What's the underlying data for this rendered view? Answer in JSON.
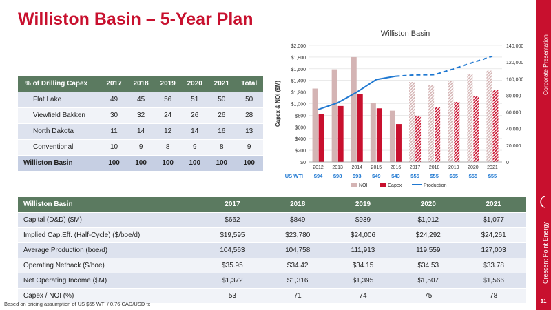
{
  "title": "Williston Basin – 5-Year Plan",
  "sidebar": {
    "top_text": "Corporate Presentation",
    "brand_text": "Crescent Point Energy",
    "page_number": "31"
  },
  "footnote": "Based on pricing assumption of US $55 WTI / 0.76 CAD/USD fx",
  "capex_table": {
    "headers": [
      "% of Drilling Capex",
      "2017",
      "2018",
      "2019",
      "2020",
      "2021",
      "Total"
    ],
    "rows": [
      [
        "Flat Lake",
        "49",
        "45",
        "56",
        "51",
        "50",
        "50"
      ],
      [
        "Viewfield Bakken",
        "30",
        "32",
        "24",
        "26",
        "26",
        "28"
      ],
      [
        "North Dakota",
        "11",
        "14",
        "12",
        "14",
        "16",
        "13"
      ],
      [
        "Conventional",
        "10",
        "9",
        "8",
        "9",
        "8",
        "9"
      ]
    ],
    "total_row": [
      "Williston Basin",
      "100",
      "100",
      "100",
      "100",
      "100",
      "100"
    ]
  },
  "plan_table": {
    "headers": [
      "Williston Basin",
      "2017",
      "2018",
      "2019",
      "2020",
      "2021"
    ],
    "rows": [
      [
        "Capital (D&D) ($M)",
        "$662",
        "$849",
        "$939",
        "$1,012",
        "$1,077"
      ],
      [
        "Implied Cap.Eff. (Half-Cycle) ($/boe/d)",
        "$19,595",
        "$23,780",
        "$24,006",
        "$24,292",
        "$24,261"
      ],
      [
        "Average Production (boe/d)",
        "104,563",
        "104,758",
        "111,913",
        "119,559",
        "127,003"
      ],
      [
        "Operating Netback ($/boe)",
        "$35.95",
        "$34.42",
        "$34.15",
        "$34.53",
        "$33.78"
      ],
      [
        "Net Operating Income ($M)",
        "$1,372",
        "$1,316",
        "$1,395",
        "$1,507",
        "$1,566"
      ],
      [
        "Capex / NOI (%)",
        "53",
        "71",
        "74",
        "75",
        "78"
      ]
    ]
  },
  "chart_data": {
    "type": "bar",
    "title": "Williston Basin",
    "ylabel": "Capex & NOI ($M)",
    "y2label": "Production (boe/d)",
    "ylim": [
      0,
      2000
    ],
    "y2lim": [
      0,
      140000
    ],
    "yticks": [
      "$0",
      "$200",
      "$400",
      "$600",
      "$800",
      "$1,000",
      "$1,200",
      "$1,400",
      "$1,600",
      "$1,800",
      "$2,000"
    ],
    "y2ticks": [
      "0",
      "20,000",
      "40,000",
      "60,000",
      "80,000",
      "100,000",
      "120,000",
      "140,000"
    ],
    "categories": [
      "2012",
      "2013",
      "2014",
      "2015",
      "2016",
      "2017",
      "2018",
      "2019",
      "2020",
      "2021"
    ],
    "forecast_from_index": 5,
    "series": [
      {
        "name": "NOI",
        "color": "#d4b4b4",
        "values": [
          1260,
          1590,
          1800,
          1010,
          880,
          1372,
          1316,
          1395,
          1507,
          1566
        ]
      },
      {
        "name": "Capex",
        "color": "#c8102e",
        "values": [
          820,
          960,
          1160,
          920,
          650,
          780,
          940,
          1030,
          1130,
          1230
        ]
      },
      {
        "name": "Production",
        "color": "#1f78d1",
        "axis": "right",
        "values": [
          63000,
          71000,
          84000,
          99000,
          103000,
          104563,
          104758,
          111913,
          119559,
          127003
        ]
      }
    ],
    "wti_label": "US WTI",
    "wti_values": [
      "$94",
      "$98",
      "$93",
      "$49",
      "$43",
      "$55",
      "$55",
      "$55",
      "$55",
      "$55"
    ],
    "legend": [
      "NOI",
      "Capex",
      "Production"
    ],
    "legend_position": "bottom",
    "colors": {
      "wti_text": "#1f78d1",
      "grid": "#dddddd"
    }
  }
}
